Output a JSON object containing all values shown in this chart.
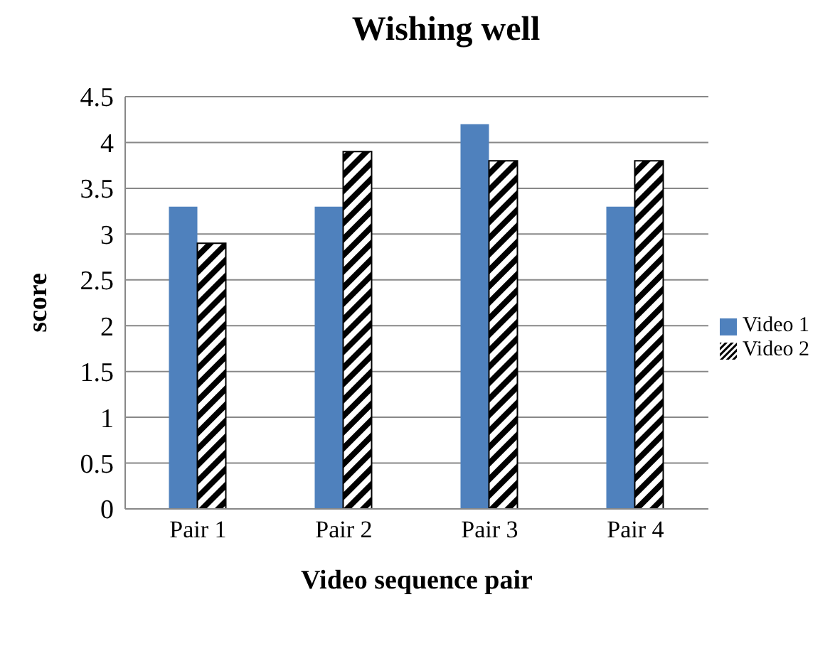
{
  "chart_data": {
    "type": "bar",
    "title": "Wishing well",
    "xlabel": "Video sequence pair",
    "ylabel": "score",
    "categories": [
      "Pair 1",
      "Pair 2",
      "Pair 3",
      "Pair 4"
    ],
    "series": [
      {
        "name": "Video 1",
        "color": "#4f81bd",
        "values": [
          3.3,
          3.3,
          4.2,
          3.3
        ]
      },
      {
        "name": "Video 2",
        "color": "#000000",
        "values": [
          2.9,
          3.9,
          3.8,
          3.8
        ]
      }
    ],
    "ylim": [
      0,
      4.5
    ],
    "yticks": [
      0,
      0.5,
      1,
      1.5,
      2,
      2.5,
      3,
      3.5,
      4,
      4.5
    ],
    "grid": "y",
    "legend": "right"
  }
}
